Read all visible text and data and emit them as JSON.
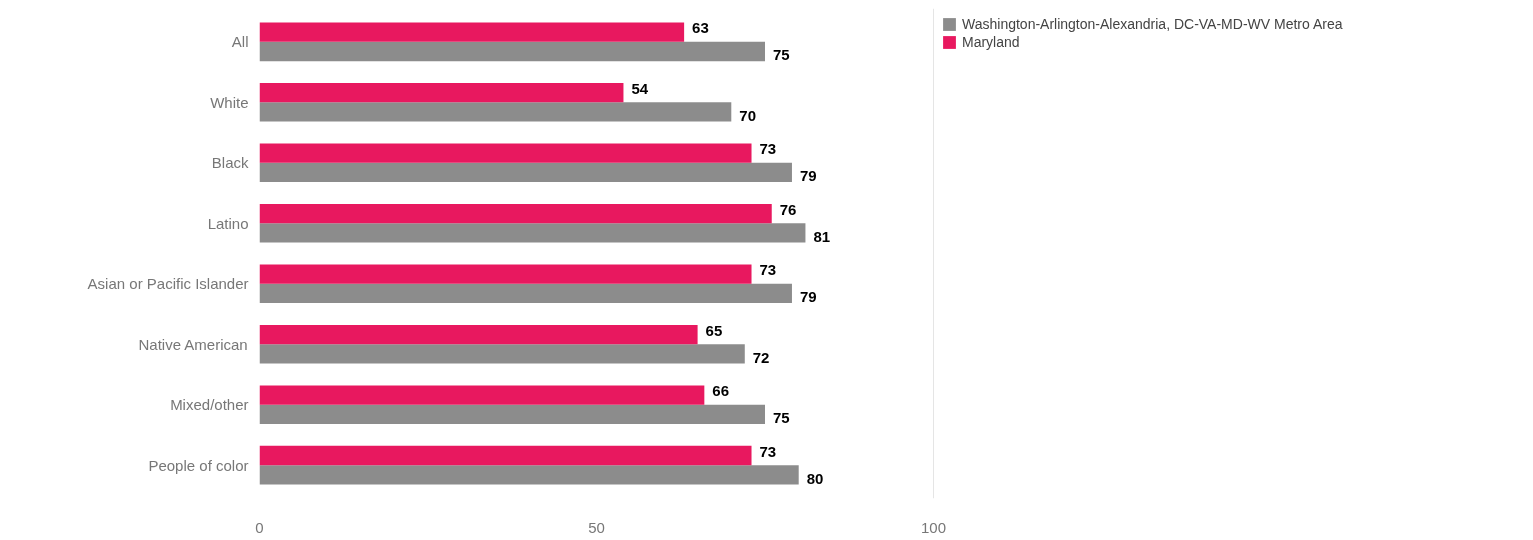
{
  "chart_data": {
    "type": "bar",
    "orientation": "horizontal",
    "categories": [
      "All",
      "White",
      "Black",
      "Latino",
      "Asian or Pacific Islander",
      "Native American",
      "Mixed/other",
      "People of color"
    ],
    "series": [
      {
        "name": "Washington-Arlington-Alexandria, DC-VA-MD-WV Metro Area",
        "color": "#8c8c8c",
        "values": [
          75,
          70,
          79,
          81,
          79,
          72,
          75,
          80
        ]
      },
      {
        "name": "Maryland",
        "color": "#e8185f",
        "values": [
          63,
          54,
          73,
          76,
          73,
          65,
          66,
          73
        ]
      }
    ],
    "xlim": [
      0,
      100
    ],
    "xticks": [
      0,
      50,
      100
    ],
    "data_labels": true,
    "legend": "top right"
  }
}
